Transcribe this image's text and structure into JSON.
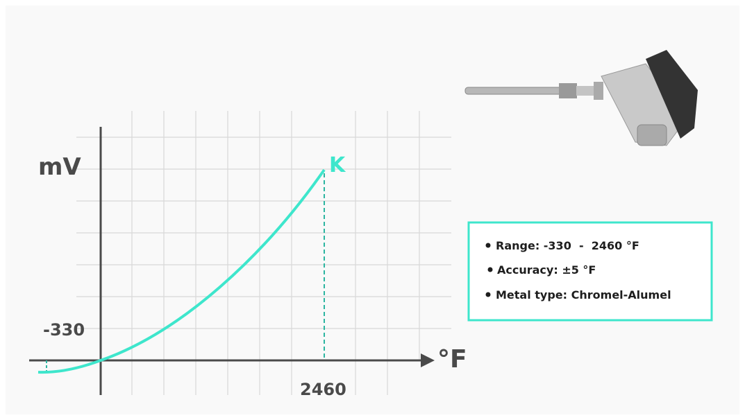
{
  "axes": {
    "y_label": "mV",
    "x_label": "°F"
  },
  "markers": {
    "low": "-330",
    "high": "2460"
  },
  "curve": {
    "label": "K"
  },
  "info": {
    "items": [
      "Range: -330  -  2460 °F",
      "Accuracy: ±5 °F",
      "Metal type: Chromel-Alumel"
    ]
  }
}
